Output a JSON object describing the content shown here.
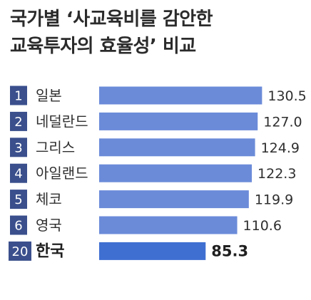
{
  "title": {
    "line1": "국가별 ‘사교육비를 감안한",
    "line2": "교육투자의 효율성’ 비교"
  },
  "colors": {
    "bar": "#6b8bd9",
    "bar_highlight": "#3f6fd1",
    "rank_badge": "#3a4f8c",
    "rank_badge_highlight": "#3a4f8c"
  },
  "chart_data": {
    "type": "bar",
    "orientation": "horizontal",
    "title": "국가별 ‘사교육비를 감안한 교육투자의 효율성’ 비교",
    "ranks": [
      "1",
      "2",
      "3",
      "4",
      "5",
      "6",
      "20"
    ],
    "categories": [
      "일본",
      "네덜란드",
      "그리스",
      "아일랜드",
      "체코",
      "영국",
      "한국"
    ],
    "values": [
      130.5,
      127.0,
      124.9,
      122.3,
      119.9,
      110.6,
      85.3
    ],
    "value_labels": [
      "130.5",
      "127.0",
      "124.9",
      "122.3",
      "119.9",
      "110.6",
      "85.3"
    ],
    "highlight": "한국",
    "xlim": [
      0,
      140
    ],
    "grid": false,
    "legend": "none"
  }
}
